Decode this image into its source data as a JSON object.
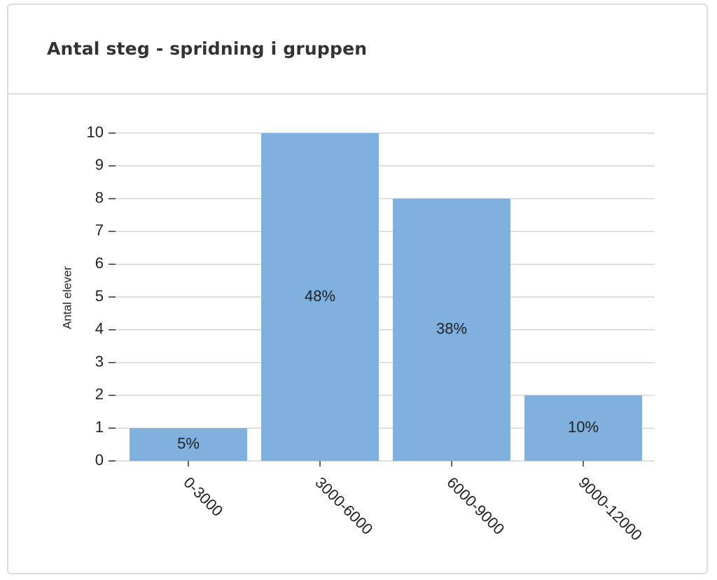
{
  "chart_data": {
    "type": "bar",
    "title": "Antal steg - spridning i gruppen",
    "y_label": "Antal elever",
    "categories": [
      "0-3000",
      "3000-6000",
      "6000-9000",
      "9000-12000"
    ],
    "values": [
      1,
      10,
      8,
      2
    ],
    "percent_labels": [
      "5%",
      "48%",
      "38%",
      "10%"
    ],
    "color": "#7fb0de",
    "ylim": [
      0,
      10
    ],
    "yticks": [
      0,
      1,
      2,
      3,
      4,
      5,
      6,
      7,
      8,
      9,
      10
    ],
    "grid": true
  }
}
